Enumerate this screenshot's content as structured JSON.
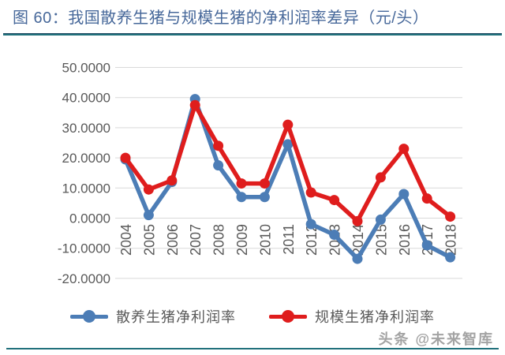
{
  "header": {
    "title": "图 60：我国散养生猪与规模生猪的净利润率差异（元/头）"
  },
  "legend": [
    {
      "label": "散养生猪净利润率",
      "color": "#4C7DB6"
    },
    {
      "label": "规模生猪净利润率",
      "color": "#DF1D1D"
    }
  ],
  "watermark": "头条 @未来智库",
  "chart_data": {
    "type": "line",
    "title": "图 60：我国散养生猪与规模生猪的净利润率差异（元/头）",
    "xlabel": "",
    "ylabel": "",
    "categories": [
      "2004",
      "2005",
      "2006",
      "2007",
      "2008",
      "2009",
      "2010",
      "2011",
      "2012",
      "2013",
      "2014",
      "2015",
      "2016",
      "2017",
      "2018"
    ],
    "series": [
      {
        "name": "散养生猪净利润率",
        "color": "#4C7DB6",
        "values": [
          19.5,
          1.0,
          12.0,
          39.5,
          17.5,
          7.0,
          7.0,
          24.5,
          -2.0,
          -5.5,
          -13.5,
          -0.5,
          8.0,
          -9.0,
          -13.0
        ]
      },
      {
        "name": "规模生猪净利润率",
        "color": "#DF1D1D",
        "values": [
          20.0,
          9.5,
          12.5,
          37.5,
          24.0,
          11.5,
          11.5,
          31.0,
          8.5,
          6.0,
          -1.0,
          13.5,
          23.0,
          6.5,
          0.5
        ]
      }
    ],
    "ylim": [
      -20,
      50
    ],
    "ytick_step": 10,
    "ytick_decimals": 4,
    "grid": true,
    "grid_color": "#d9d9d9",
    "axis_text_color": "#595959",
    "legend_position": "bottom",
    "x_labels_rotated_90": true
  }
}
